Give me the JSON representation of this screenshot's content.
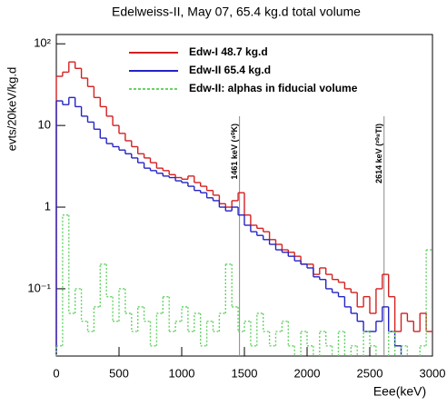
{
  "chart_data": {
    "type": "histogram",
    "title": "Edelweiss-II, May 07, 65.4 kg.d total volume",
    "x_label": "Eee(keV)",
    "y_label": "evts/20keV/kg.d",
    "log_y": true,
    "xlim": [
      0,
      3000
    ],
    "xticks": [
      0,
      500,
      1000,
      1500,
      2000,
      2500,
      3000
    ],
    "ylim": [
      0.015,
      130
    ],
    "yticks": [
      {
        "value": 0.1,
        "label": "10⁻¹"
      },
      1,
      10,
      {
        "value": 100,
        "label": "10²"
      }
    ],
    "bins": [
      0,
      50,
      100,
      150,
      200,
      250,
      300,
      350,
      400,
      450,
      500,
      550,
      600,
      650,
      700,
      750,
      800,
      850,
      900,
      950,
      1000,
      1050,
      1100,
      1150,
      1200,
      1250,
      1300,
      1350,
      1400,
      1450,
      1500,
      1550,
      1600,
      1650,
      1700,
      1750,
      1800,
      1850,
      1900,
      1950,
      2000,
      2050,
      2100,
      2150,
      2200,
      2250,
      2300,
      2350,
      2400,
      2450,
      2500,
      2550,
      2600,
      2650,
      2700,
      2750,
      2800,
      2850,
      2900,
      2950,
      3000
    ],
    "series": [
      {
        "name": "Edw-I 48.7 kg.d",
        "color": "#d42020",
        "dashed": false,
        "values": [
          40,
          45,
          60,
          50,
          38,
          30,
          22,
          17,
          13,
          10,
          8,
          6.5,
          5.5,
          4.5,
          4,
          3.5,
          3,
          2.8,
          2.5,
          2.3,
          2.2,
          2.4,
          2.0,
          1.8,
          1.6,
          1.4,
          1.1,
          1.0,
          1.2,
          1.5,
          0.8,
          0.6,
          0.55,
          0.5,
          0.4,
          0.35,
          0.3,
          0.28,
          0.25,
          0.2,
          0.2,
          0.15,
          0.18,
          0.15,
          0.13,
          0.12,
          0.1,
          0.09,
          0.06,
          0.08,
          0.05,
          0.1,
          0.15,
          0.08,
          0.03,
          0.05,
          0.04,
          0.03,
          0.05,
          0.03
        ]
      },
      {
        "name": "Edw-II 65.4 kg.d",
        "color": "#2424c4",
        "dashed": false,
        "values": [
          20,
          18,
          22,
          17,
          13,
          11,
          9,
          7,
          6,
          5.5,
          5,
          4.5,
          4,
          3.5,
          3,
          2.8,
          2.6,
          2.4,
          2.3,
          2.1,
          2.0,
          1.8,
          1.6,
          1.5,
          1.3,
          1.2,
          1.0,
          0.9,
          1.0,
          0.8,
          0.6,
          0.5,
          0.45,
          0.4,
          0.35,
          0.3,
          0.28,
          0.25,
          0.22,
          0.2,
          0.18,
          0.14,
          0.13,
          0.1,
          0.09,
          0.08,
          0.06,
          0.05,
          0.04,
          0.03,
          0.03,
          0.04,
          0.06,
          0.03,
          0.02,
          null,
          null,
          null,
          null,
          null
        ]
      },
      {
        "name": "Edw-II: alphas in fiducial volume",
        "color": "#66d466",
        "dashed": true,
        "values": [
          0.02,
          0.8,
          0.05,
          0.1,
          0.04,
          0.03,
          0.06,
          0.2,
          0.08,
          0.04,
          0.1,
          0.05,
          0.03,
          0.06,
          0.04,
          0.02,
          0.05,
          0.08,
          0.03,
          0.04,
          0.06,
          0.03,
          0.05,
          0.02,
          0.04,
          0.03,
          0.05,
          0.2,
          0.06,
          0.03,
          0.04,
          0.02,
          0.05,
          0.03,
          0.02,
          0.03,
          0.04,
          0.02,
          null,
          0.03,
          0.02,
          null,
          0.03,
          0.02,
          null,
          0.03,
          null,
          0.02,
          null,
          0.03,
          0.02,
          null,
          null,
          0.03,
          null,
          0.02,
          null,
          null,
          0.02,
          0.3
        ]
      }
    ],
    "annotations": [
      {
        "x": 1461,
        "text": "1461 keV (⁴⁰K)"
      },
      {
        "x": 2614,
        "text": "2614 keV (²⁰⁸Tl)"
      }
    ]
  }
}
